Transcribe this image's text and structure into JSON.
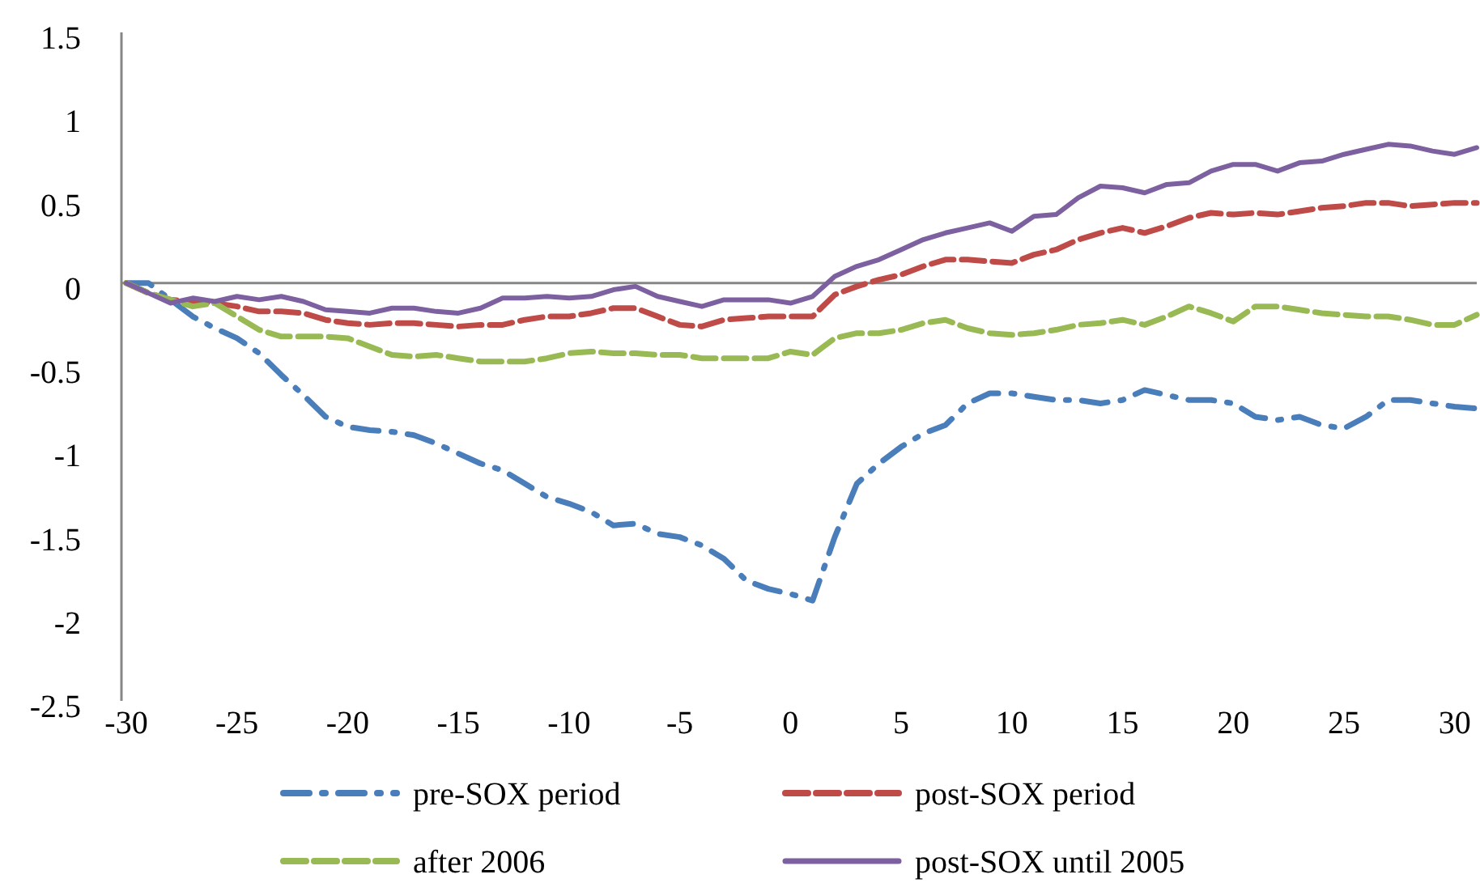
{
  "chart_data": {
    "type": "line",
    "x": [
      -30,
      -29,
      -28,
      -27,
      -26,
      -25,
      -24,
      -23,
      -22,
      -21,
      -20,
      -19,
      -18,
      -17,
      -16,
      -15,
      -14,
      -13,
      -12,
      -11,
      -10,
      -9,
      -8,
      -7,
      -6,
      -5,
      -4,
      -3,
      -2,
      -1,
      0,
      1,
      2,
      3,
      4,
      5,
      6,
      7,
      8,
      9,
      10,
      11,
      12,
      13,
      14,
      15,
      16,
      17,
      18,
      19,
      20,
      21,
      22,
      23,
      24,
      25,
      26,
      27,
      28,
      29,
      30,
      31
    ],
    "series": [
      {
        "name": "pre-SOX period",
        "color": "#4a7ebb",
        "line_style": "dashdot",
        "values": [
          0,
          0,
          -0.1,
          -0.2,
          -0.27,
          -0.33,
          -0.42,
          -0.55,
          -0.67,
          -0.8,
          -0.86,
          -0.88,
          -0.89,
          -0.91,
          -0.96,
          -1.02,
          -1.08,
          -1.12,
          -1.2,
          -1.28,
          -1.32,
          -1.37,
          -1.45,
          -1.44,
          -1.5,
          -1.52,
          -1.57,
          -1.65,
          -1.78,
          -1.83,
          -1.86,
          -1.9,
          -1.52,
          -1.2,
          -1.08,
          -0.98,
          -0.9,
          -0.85,
          -0.72,
          -0.66,
          -0.66,
          -0.68,
          -0.7,
          -0.7,
          -0.72,
          -0.7,
          -0.64,
          -0.67,
          -0.7,
          -0.7,
          -0.72,
          -0.8,
          -0.82,
          -0.8,
          -0.85,
          -0.87,
          -0.8,
          -0.7,
          -0.7,
          -0.72,
          -0.74,
          -0.75
        ]
      },
      {
        "name": "post-SOX period",
        "color": "#be4b48",
        "line_style": "dashed",
        "values": [
          0,
          -0.06,
          -0.1,
          -0.11,
          -0.12,
          -0.14,
          -0.17,
          -0.17,
          -0.18,
          -0.22,
          -0.24,
          -0.25,
          -0.24,
          -0.24,
          -0.25,
          -0.26,
          -0.25,
          -0.25,
          -0.22,
          -0.2,
          -0.2,
          -0.18,
          -0.15,
          -0.15,
          -0.2,
          -0.25,
          -0.26,
          -0.22,
          -0.21,
          -0.2,
          -0.2,
          -0.2,
          -0.07,
          -0.02,
          0.02,
          0.05,
          0.1,
          0.14,
          0.14,
          0.13,
          0.12,
          0.17,
          0.2,
          0.26,
          0.3,
          0.33,
          0.3,
          0.34,
          0.39,
          0.42,
          0.41,
          0.42,
          0.41,
          0.43,
          0.45,
          0.46,
          0.48,
          0.48,
          0.46,
          0.47,
          0.48,
          0.48
        ]
      },
      {
        "name": "after 2006",
        "color": "#98b954",
        "line_style": "dashed",
        "values": [
          0,
          -0.06,
          -0.1,
          -0.14,
          -0.12,
          -0.2,
          -0.28,
          -0.32,
          -0.32,
          -0.32,
          -0.33,
          -0.38,
          -0.43,
          -0.44,
          -0.43,
          -0.45,
          -0.47,
          -0.47,
          -0.47,
          -0.45,
          -0.42,
          -0.41,
          -0.42,
          -0.42,
          -0.43,
          -0.43,
          -0.45,
          -0.45,
          -0.45,
          -0.45,
          -0.41,
          -0.43,
          -0.33,
          -0.3,
          -0.3,
          -0.28,
          -0.24,
          -0.22,
          -0.27,
          -0.3,
          -0.31,
          -0.3,
          -0.28,
          -0.25,
          -0.24,
          -0.22,
          -0.25,
          -0.2,
          -0.14,
          -0.18,
          -0.23,
          -0.14,
          -0.14,
          -0.16,
          -0.18,
          -0.19,
          -0.2,
          -0.2,
          -0.22,
          -0.25,
          -0.25,
          -0.19
        ]
      },
      {
        "name": "post-SOX until 2005",
        "color": "#7d60a0",
        "line_style": "solid",
        "values": [
          0,
          -0.06,
          -0.12,
          -0.09,
          -0.11,
          -0.08,
          -0.1,
          -0.08,
          -0.11,
          -0.16,
          -0.17,
          -0.18,
          -0.15,
          -0.15,
          -0.17,
          -0.18,
          -0.15,
          -0.09,
          -0.09,
          -0.08,
          -0.09,
          -0.08,
          -0.04,
          -0.02,
          -0.08,
          -0.11,
          -0.14,
          -0.1,
          -0.1,
          -0.1,
          -0.12,
          -0.08,
          0.04,
          0.1,
          0.14,
          0.2,
          0.26,
          0.3,
          0.33,
          0.36,
          0.31,
          0.4,
          0.41,
          0.51,
          0.58,
          0.57,
          0.54,
          0.59,
          0.6,
          0.67,
          0.71,
          0.71,
          0.67,
          0.72,
          0.73,
          0.77,
          0.8,
          0.83,
          0.82,
          0.79,
          0.77,
          0.81
        ]
      }
    ],
    "xlim": [
      -30,
      31
    ],
    "xticks": [
      -30,
      -25,
      -20,
      -15,
      -10,
      -5,
      0,
      5,
      10,
      15,
      20,
      25,
      30
    ],
    "ylim": [
      -2.5,
      1.5
    ],
    "yticks": [
      -2.5,
      -2,
      -1.5,
      -1,
      -0.5,
      0,
      0.5,
      1,
      1.5
    ],
    "legend": "bottom",
    "marker": "none"
  }
}
